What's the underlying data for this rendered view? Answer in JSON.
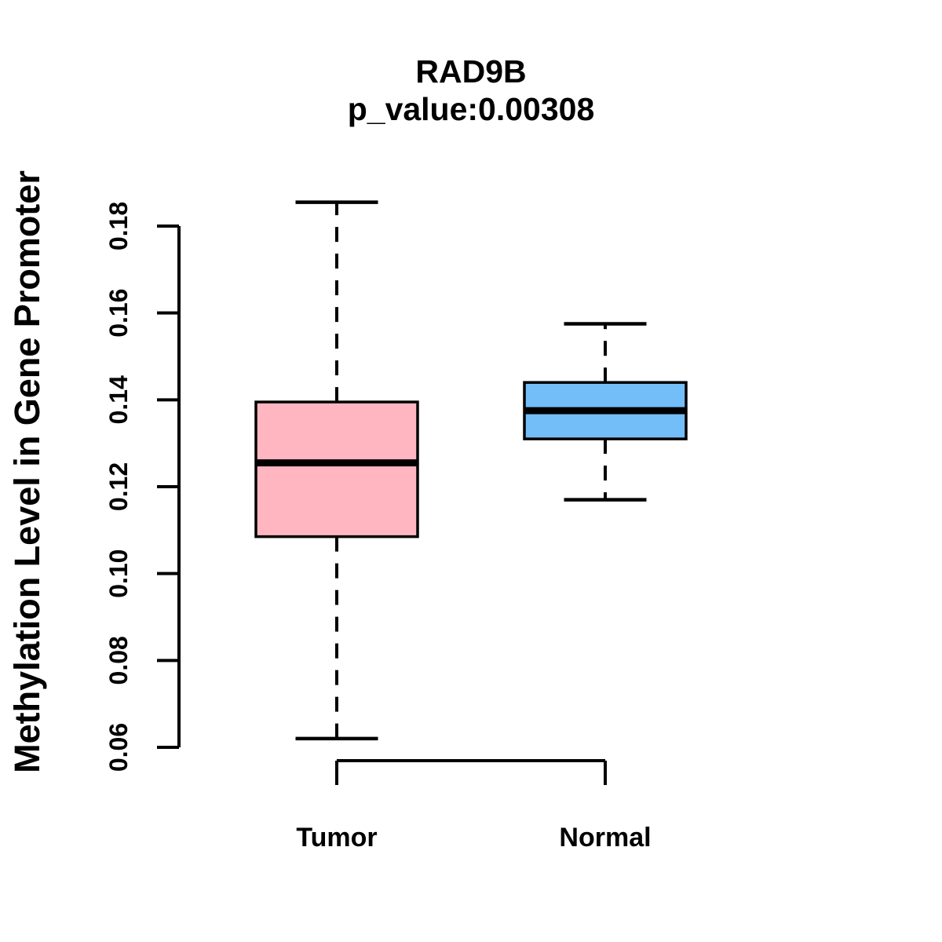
{
  "figure": {
    "title": "RAD9B",
    "subtitle": "p_value:0.00308",
    "y_axis_label": "Methylation Level in Gene Promoter",
    "background_color": "#FFFFFF"
  },
  "chart_data": {
    "type": "boxplot",
    "title": "RAD9B",
    "subtitle": "p_value:0.00308",
    "xlabel": "",
    "ylabel": "Methylation Level in Gene Promoter",
    "categories": [
      "Tumor",
      "Normal"
    ],
    "y_ticks": [
      0.06,
      0.08,
      0.1,
      0.12,
      0.14,
      0.16,
      0.18
    ],
    "y_tick_decimals": 2,
    "ylim": [
      0.06,
      0.18
    ],
    "grid": false,
    "legend": "none",
    "whisker_style": "dashed",
    "series": [
      {
        "name": "Tumor",
        "fill_color": "#FFB6C1",
        "whisker_low": 0.062,
        "q1": 0.1085,
        "median": 0.1255,
        "q3": 0.1395,
        "whisker_high": 0.1855
      },
      {
        "name": "Normal",
        "fill_color": "#73BDF8",
        "whisker_low": 0.117,
        "q1": 0.131,
        "median": 0.1375,
        "q3": 0.144,
        "whisker_high": 0.1575
      }
    ],
    "colors": {
      "box_border": "#000000",
      "median": "#000000",
      "axis": "#000000",
      "text": "#000000",
      "background": "#FFFFFF"
    }
  }
}
